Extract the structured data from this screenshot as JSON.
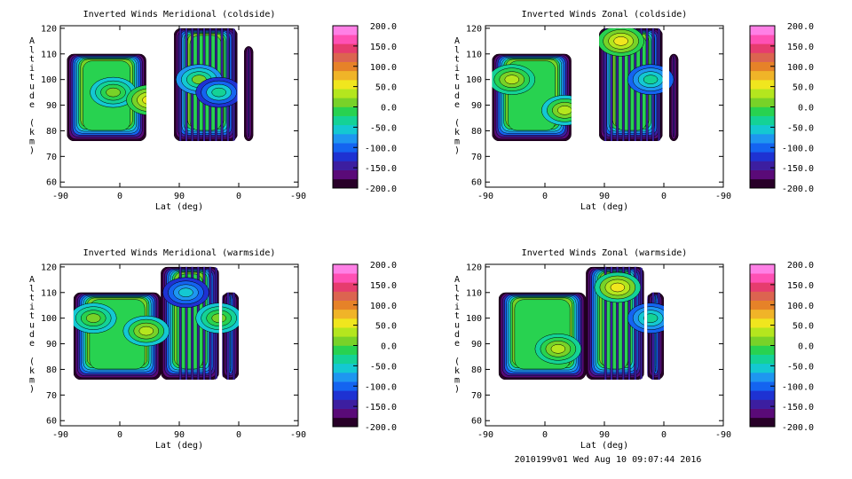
{
  "footer": "2010199v01 Wed Aug 10 09:07:44 2016",
  "colors": {
    "colorbar": [
      "#280028",
      "#5a0a78",
      "#3c1ea0",
      "#1e32d2",
      "#1464f0",
      "#1e96f0",
      "#14c8d2",
      "#14d296",
      "#28d250",
      "#78d228",
      "#b4e61e",
      "#f0e61e",
      "#f0b428",
      "#e68228",
      "#dc6450",
      "#e63c6e",
      "#ff50b4",
      "#ff80e6"
    ],
    "contour_line": "#000000"
  },
  "chart_data": [
    {
      "type": "contour",
      "title": "Inverted Winds Meridional (coldside)",
      "xlabel": "Lat (deg)",
      "ylabel": "Altitude (km)",
      "x_ticks": [
        "-90",
        "0",
        "90",
        "0",
        "-90"
      ],
      "y_ticks": [
        "60",
        "70",
        "80",
        "90",
        "100",
        "110",
        "120"
      ],
      "ylim": [
        58,
        121
      ],
      "colorbar_ticks": [
        "200.0",
        "150.0",
        "100.0",
        "50.0",
        "0.0",
        "-50.0",
        "-100.0",
        "-150.0",
        "-200.0"
      ],
      "colorbar_range": [
        -200,
        200
      ],
      "blobs": [
        {
          "lat": -10,
          "alt": 95,
          "value": 20
        },
        {
          "lat": 45,
          "alt": 92,
          "value": 60
        },
        {
          "lat": 120,
          "alt": 100,
          "value": 0
        },
        {
          "lat": 150,
          "alt": 95,
          "value": -40
        }
      ]
    },
    {
      "type": "contour",
      "title": "Inverted Winds Zonal (coldside)",
      "xlabel": "Lat (deg)",
      "ylabel": "Altitude (km)",
      "x_ticks": [
        "-90",
        "0",
        "90",
        "0",
        "-90"
      ],
      "y_ticks": [
        "60",
        "70",
        "80",
        "90",
        "100",
        "110",
        "120"
      ],
      "ylim": [
        58,
        121
      ],
      "colorbar_ticks": [
        "200.0",
        "150.0",
        "100.0",
        "50.0",
        "0.0",
        "-50.0",
        "-100.0",
        "-150.0",
        "-200.0"
      ],
      "colorbar_range": [
        -200,
        200
      ],
      "blobs": [
        {
          "lat": -50,
          "alt": 100,
          "value": 40
        },
        {
          "lat": 30,
          "alt": 88,
          "value": 30
        },
        {
          "lat": 115,
          "alt": 115,
          "value": 60
        },
        {
          "lat": 160,
          "alt": 100,
          "value": -30
        }
      ]
    },
    {
      "type": "contour",
      "title": "Inverted Winds Meridional (warmside)",
      "xlabel": "Lat (deg)",
      "ylabel": "Altitude (km)",
      "x_ticks": [
        "-90",
        "0",
        "90",
        "0",
        "-90"
      ],
      "y_ticks": [
        "60",
        "70",
        "80",
        "90",
        "100",
        "110",
        "120"
      ],
      "ylim": [
        58,
        121
      ],
      "colorbar_ticks": [
        "200.0",
        "150.0",
        "100.0",
        "50.0",
        "0.0",
        "-50.0",
        "-100.0",
        "-150.0",
        "-200.0"
      ],
      "colorbar_range": [
        -200,
        200
      ],
      "blobs": [
        {
          "lat": 40,
          "alt": 95,
          "value": 30
        },
        {
          "lat": -40,
          "alt": 100,
          "value": 10
        },
        {
          "lat": 100,
          "alt": 110,
          "value": -50
        },
        {
          "lat": 150,
          "alt": 100,
          "value": 20
        }
      ]
    },
    {
      "type": "contour",
      "title": "Inverted Winds Zonal (warmside)",
      "xlabel": "Lat (deg)",
      "ylabel": "Altitude (km)",
      "x_ticks": [
        "-90",
        "0",
        "90",
        "0",
        "-90"
      ],
      "y_ticks": [
        "60",
        "70",
        "80",
        "90",
        "100",
        "110",
        "120"
      ],
      "ylim": [
        58,
        121
      ],
      "colorbar_ticks": [
        "200.0",
        "150.0",
        "100.0",
        "50.0",
        "0.0",
        "-50.0",
        "-100.0",
        "-150.0",
        "-200.0"
      ],
      "colorbar_range": [
        -200,
        200
      ],
      "blobs": [
        {
          "lat": 20,
          "alt": 88,
          "value": 40
        },
        {
          "lat": 110,
          "alt": 112,
          "value": 50
        },
        {
          "lat": 160,
          "alt": 100,
          "value": -30
        }
      ]
    }
  ]
}
